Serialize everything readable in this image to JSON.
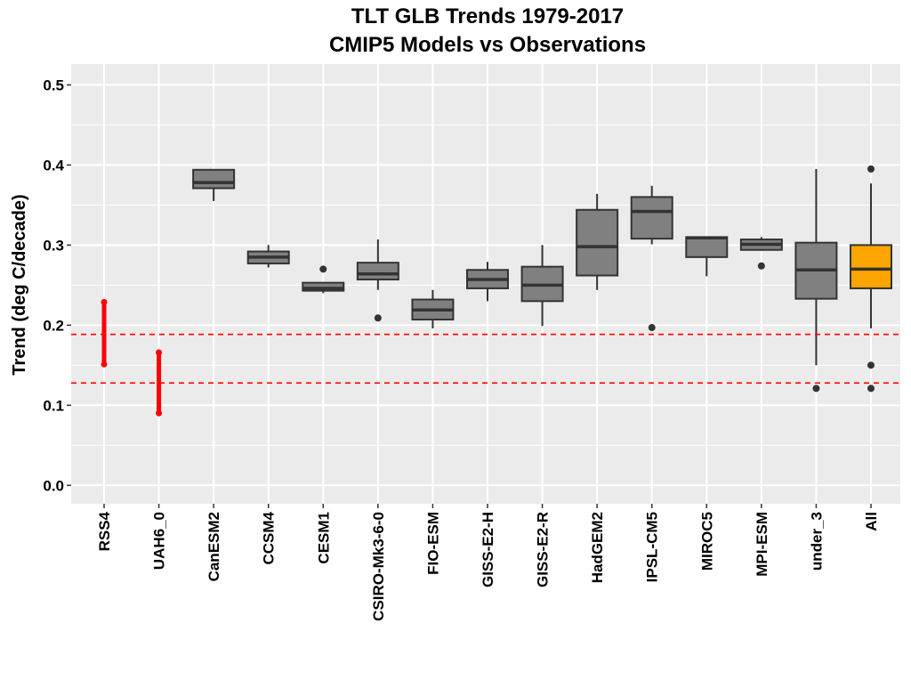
{
  "chart_data": {
    "type": "box",
    "title": "TLT GLB Trends 1979-2017",
    "subtitle": "CMIP5 Models vs Observations",
    "xlabel": "",
    "ylabel": "Trend (deg C/decade)",
    "ylim": [
      -0.023,
      0.526
    ],
    "yticks": [
      "0.0",
      "0.1",
      "0.2",
      "0.3",
      "0.4",
      "0.5"
    ],
    "grid": true,
    "colors": {
      "panel": "#EBEBEB",
      "box": "#808080",
      "highlight": "#FFA500",
      "obs": "#FF0000",
      "line": "#333333"
    },
    "observations": [
      {
        "label": "RSS4",
        "low": 0.15,
        "high": 0.23
      },
      {
        "label": "UAH6_0",
        "low": 0.089,
        "high": 0.167
      }
    ],
    "reference_lines": [
      0.1885,
      0.1278
    ],
    "boxes": [
      {
        "label": "CanESM2",
        "wlow": 0.355,
        "q1": 0.371,
        "median": 0.378,
        "q3": 0.394,
        "whigh": 0.394,
        "outliers": []
      },
      {
        "label": "CCSM4",
        "wlow": 0.272,
        "q1": 0.277,
        "median": 0.285,
        "q3": 0.292,
        "whigh": 0.3,
        "outliers": []
      },
      {
        "label": "CESM1",
        "wlow": 0.24,
        "q1": 0.243,
        "median": 0.246,
        "q3": 0.253,
        "whigh": 0.253,
        "outliers": [
          0.27
        ]
      },
      {
        "label": "CSIRO-Mk3-6-0",
        "wlow": 0.244,
        "q1": 0.257,
        "median": 0.264,
        "q3": 0.278,
        "whigh": 0.307,
        "outliers": [
          0.209
        ]
      },
      {
        "label": "FIO-ESM",
        "wlow": 0.196,
        "q1": 0.207,
        "median": 0.219,
        "q3": 0.232,
        "whigh": 0.244,
        "outliers": []
      },
      {
        "label": "GISS-E2-H",
        "wlow": 0.23,
        "q1": 0.246,
        "median": 0.257,
        "q3": 0.269,
        "whigh": 0.279,
        "outliers": []
      },
      {
        "label": "GISS-E2-R",
        "wlow": 0.199,
        "q1": 0.23,
        "median": 0.25,
        "q3": 0.273,
        "whigh": 0.3,
        "outliers": []
      },
      {
        "label": "HadGEM2",
        "wlow": 0.244,
        "q1": 0.262,
        "median": 0.298,
        "q3": 0.344,
        "whigh": 0.364,
        "outliers": []
      },
      {
        "label": "IPSL-CM5",
        "wlow": 0.301,
        "q1": 0.308,
        "median": 0.342,
        "q3": 0.36,
        "whigh": 0.374,
        "outliers": [
          0.197
        ]
      },
      {
        "label": "MIROC5",
        "wlow": 0.261,
        "q1": 0.285,
        "median": 0.309,
        "q3": 0.31,
        "whigh": 0.31,
        "outliers": []
      },
      {
        "label": "MPI-ESM",
        "wlow": 0.293,
        "q1": 0.294,
        "median": 0.301,
        "q3": 0.307,
        "whigh": 0.31,
        "outliers": [
          0.274
        ]
      },
      {
        "label": "under_3",
        "wlow": 0.15,
        "q1": 0.233,
        "median": 0.269,
        "q3": 0.303,
        "whigh": 0.395,
        "outliers": [
          0.121
        ]
      },
      {
        "label": "All",
        "wlow": 0.196,
        "q1": 0.246,
        "median": 0.27,
        "q3": 0.3,
        "whigh": 0.377,
        "outliers": [
          0.395,
          0.15,
          0.121
        ],
        "highlight": true
      }
    ]
  }
}
